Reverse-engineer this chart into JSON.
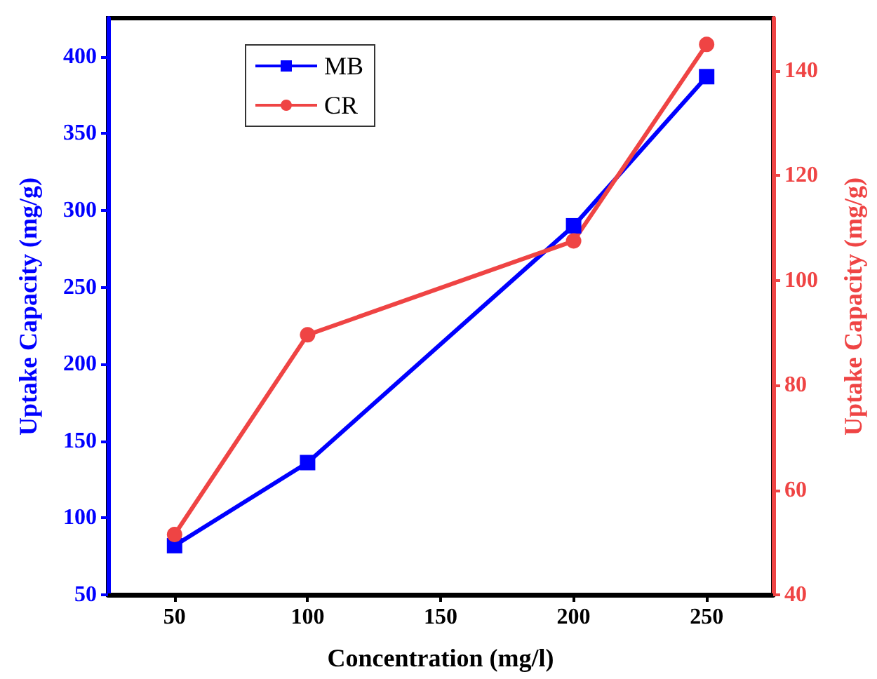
{
  "chart_data": {
    "type": "line",
    "xlabel": "Concentration (mg/l)",
    "ylabel": "Uptake Capacity (mg/g)",
    "y2label": "Uptake Capacity (mg/g)",
    "x": [
      50,
      100,
      200,
      250
    ],
    "xlim": [
      25,
      275
    ],
    "xticks": [
      50,
      100,
      150,
      200,
      250
    ],
    "ylim": [
      50,
      425
    ],
    "yticks": [
      50,
      100,
      150,
      200,
      250,
      300,
      350,
      400
    ],
    "y2lim": [
      40,
      150
    ],
    "y2ticks": [
      40,
      60,
      80,
      100,
      120,
      140
    ],
    "series": [
      {
        "name": "MB",
        "color": "#0000ff",
        "values": [
          82,
          136,
          290,
          387
        ],
        "marker": "square"
      },
      {
        "name": "CR",
        "color": "#ef4444",
        "values": [
          51.5,
          89.6,
          107.5,
          145
        ],
        "marker": "circle",
        "axis": "y2"
      }
    ],
    "legend": "top left",
    "grid": false,
    "line_style": "solid"
  }
}
